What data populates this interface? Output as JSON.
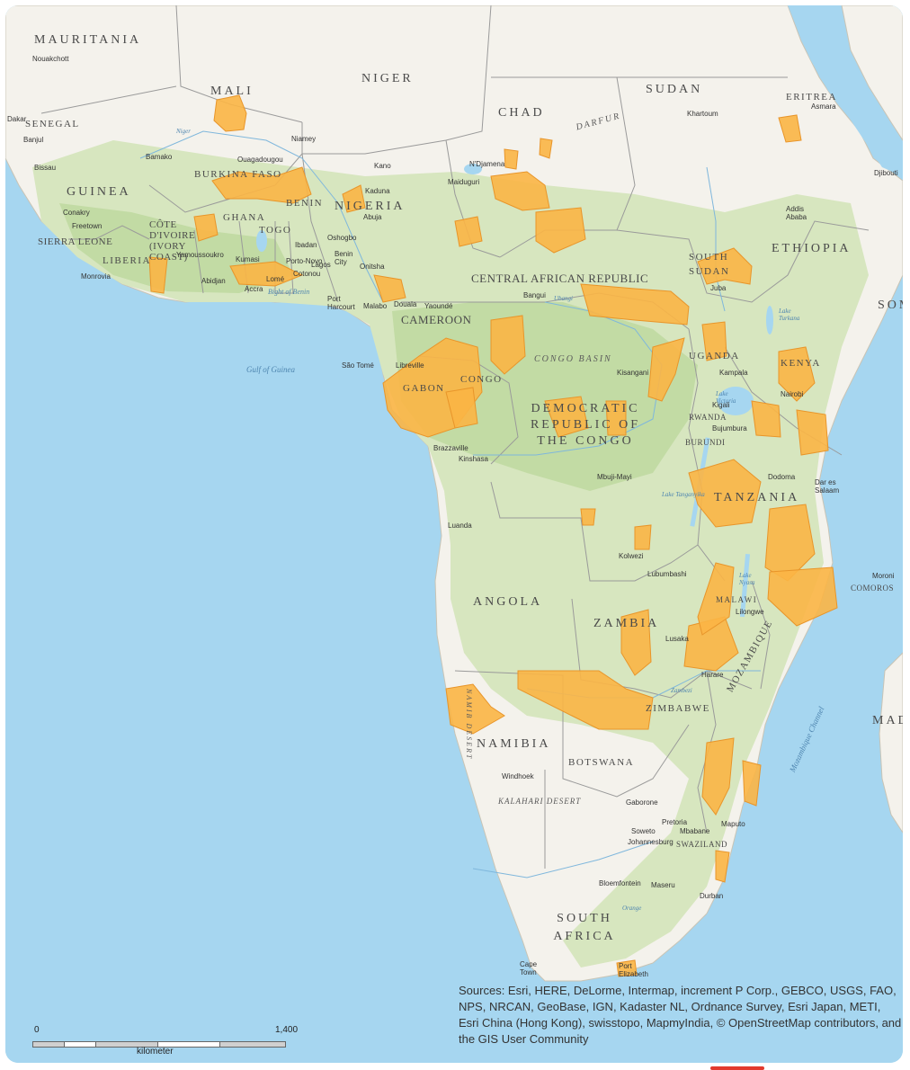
{
  "colors": {
    "ocean": "#a6d6f0",
    "land_dry": "#f4f2ec",
    "land_veg": "#d7e6bf",
    "land_forest": "#c2dba4",
    "border": "#9a9a9a",
    "range_fill": "#fbb545",
    "range_stroke": "#e8952a"
  },
  "countries": [
    {
      "id": "mauritania",
      "text": "MAURITANIA"
    },
    {
      "id": "mali",
      "text": "MALI"
    },
    {
      "id": "niger",
      "text": "NIGER"
    },
    {
      "id": "chad",
      "text": "CHAD"
    },
    {
      "id": "sudan",
      "text": "SUDAN"
    },
    {
      "id": "eritrea",
      "text": "ERITREA"
    },
    {
      "id": "senegal",
      "text": "SENEGAL"
    },
    {
      "id": "guinea",
      "text": "GUINEA"
    },
    {
      "id": "burkina",
      "text": "BURKINA FASO"
    },
    {
      "id": "benin",
      "text": "BENIN"
    },
    {
      "id": "nigeria",
      "text": "NIGERIA"
    },
    {
      "id": "ghana",
      "text": "GHANA"
    },
    {
      "id": "togo",
      "text": "TOGO"
    },
    {
      "id": "cotedivoire",
      "text": "CÔTE D'IVOIRE (IVORY COAST)"
    },
    {
      "id": "sierraleone",
      "text": "SIERRA LEONE"
    },
    {
      "id": "liberia",
      "text": "LIBERIA"
    },
    {
      "id": "southsudan",
      "text": "SOUTH SUDAN"
    },
    {
      "id": "ethiopia",
      "text": "ETHIOPIA"
    },
    {
      "id": "car",
      "text": "CENTRAL AFRICAN REPUBLIC"
    },
    {
      "id": "cameroon",
      "text": "CAMEROON"
    },
    {
      "id": "gabon",
      "text": "GABON"
    },
    {
      "id": "congo",
      "text": "CONGO"
    },
    {
      "id": "drc",
      "text": "DEMOCRATIC REPUBLIC OF THE CONGO"
    },
    {
      "id": "uganda",
      "text": "UGANDA"
    },
    {
      "id": "kenya",
      "text": "KENYA"
    },
    {
      "id": "rwanda",
      "text": "RWANDA"
    },
    {
      "id": "burundi",
      "text": "BURUNDI"
    },
    {
      "id": "tanzania",
      "text": "TANZANIA"
    },
    {
      "id": "angola",
      "text": "ANGOLA"
    },
    {
      "id": "zambia",
      "text": "ZAMBIA"
    },
    {
      "id": "malawi",
      "text": "MALAWI"
    },
    {
      "id": "mozambique",
      "text": "MOZAMBIQUE"
    },
    {
      "id": "zimbabwe",
      "text": "ZIMBABWE"
    },
    {
      "id": "namibia",
      "text": "NAMIBIA"
    },
    {
      "id": "botswana",
      "text": "BOTSWANA"
    },
    {
      "id": "swaziland",
      "text": "SWAZILAND"
    },
    {
      "id": "southafrica",
      "text": "SOUTH AFRICA"
    },
    {
      "id": "comoros",
      "text": "COMOROS"
    },
    {
      "id": "somalia",
      "text": "SOM"
    },
    {
      "id": "madagascar",
      "text": "MAD"
    }
  ],
  "regions": [
    {
      "id": "darfur",
      "text": "DARFUR"
    },
    {
      "id": "congobasin",
      "text": "CONGO BASIN"
    },
    {
      "id": "kalahari",
      "text": "KALAHARI DESERT"
    },
    {
      "id": "namibdesert",
      "text": "NAMIB DESERT"
    }
  ],
  "water": [
    {
      "id": "gulfguinea",
      "text": "Gulf of Guinea"
    },
    {
      "id": "bightbenin",
      "text": "Bight of Benin"
    },
    {
      "id": "mozchannel",
      "text": "Mozambique Channel"
    },
    {
      "id": "lakevictoria",
      "text": "Lake Victoria"
    },
    {
      "id": "laketurkana",
      "text": "Lake Turkana"
    },
    {
      "id": "laketanganyika",
      "text": "Lake Tanganyika"
    },
    {
      "id": "lakenyasa",
      "text": "Lake Nyasa"
    },
    {
      "id": "niger_river",
      "text": "Niger"
    },
    {
      "id": "ubangi",
      "text": "Ubangi"
    },
    {
      "id": "zambezi",
      "text": "Zambezi"
    },
    {
      "id": "orange",
      "text": "Orange"
    }
  ],
  "cities": [
    {
      "id": "nouakchott",
      "text": "Nouakchott"
    },
    {
      "id": "dakar",
      "text": "Dakar"
    },
    {
      "id": "banjul",
      "text": "Banjul"
    },
    {
      "id": "bissau",
      "text": "Bissau"
    },
    {
      "id": "conakry",
      "text": "Conakry"
    },
    {
      "id": "freetown",
      "text": "Freetown"
    },
    {
      "id": "monrovia",
      "text": "Monrovia"
    },
    {
      "id": "bamako",
      "text": "Bamako"
    },
    {
      "id": "ouagadougou",
      "text": "Ouagadougou"
    },
    {
      "id": "niamey",
      "text": "Niamey"
    },
    {
      "id": "kano",
      "text": "Kano"
    },
    {
      "id": "kaduna",
      "text": "Kaduna"
    },
    {
      "id": "abuja",
      "text": "Abuja"
    },
    {
      "id": "ndjamena",
      "text": "N'Djamena"
    },
    {
      "id": "maiduguri",
      "text": "Maiduguri"
    },
    {
      "id": "khartoum",
      "text": "Khartoum"
    },
    {
      "id": "asmara",
      "text": "Asmara"
    },
    {
      "id": "djibouti",
      "text": "Djibouti"
    },
    {
      "id": "addis",
      "text": "Addis Ababa"
    },
    {
      "id": "yamoussoukro",
      "text": "Yamoussoukro"
    },
    {
      "id": "abidjan",
      "text": "Abidjan"
    },
    {
      "id": "kumasi",
      "text": "Kumasi"
    },
    {
      "id": "accra",
      "text": "Accra"
    },
    {
      "id": "lome",
      "text": "Lomé"
    },
    {
      "id": "portonovo",
      "text": "Porto-Novo"
    },
    {
      "id": "cotonou",
      "text": "Cotonou"
    },
    {
      "id": "lagos",
      "text": "Lagos"
    },
    {
      "id": "ibadan",
      "text": "Ibadan"
    },
    {
      "id": "oshogbo",
      "text": "Oshogbo"
    },
    {
      "id": "onitsha",
      "text": "Onitsha"
    },
    {
      "id": "benincity",
      "text": "Benin City"
    },
    {
      "id": "portharcourt",
      "text": "Port Harcourt"
    },
    {
      "id": "malabo",
      "text": "Malabo"
    },
    {
      "id": "douala",
      "text": "Douala"
    },
    {
      "id": "yaounde",
      "text": "Yaoundé"
    },
    {
      "id": "bangui",
      "text": "Bangui"
    },
    {
      "id": "juba",
      "text": "Juba"
    },
    {
      "id": "saotome",
      "text": "São Tomé"
    },
    {
      "id": "libreville",
      "text": "Libreville"
    },
    {
      "id": "kisangani",
      "text": "Kisangani"
    },
    {
      "id": "kampala",
      "text": "Kampala"
    },
    {
      "id": "nairobi",
      "text": "Nairobi"
    },
    {
      "id": "kigali",
      "text": "Kigali"
    },
    {
      "id": "bujumbura",
      "text": "Bujumbura"
    },
    {
      "id": "brazzaville",
      "text": "Brazzaville"
    },
    {
      "id": "kinshasa",
      "text": "Kinshasa"
    },
    {
      "id": "mbujimayi",
      "text": "Mbuji-Mayi"
    },
    {
      "id": "dodoma",
      "text": "Dodoma"
    },
    {
      "id": "daressalaam",
      "text": "Dar es Salaam"
    },
    {
      "id": "luanda",
      "text": "Luanda"
    },
    {
      "id": "kolwezi",
      "text": "Kolwezi"
    },
    {
      "id": "lubumbashi",
      "text": "Lubumbashi"
    },
    {
      "id": "lusaka",
      "text": "Lusaka"
    },
    {
      "id": "lilongwe",
      "text": "Lilongwe"
    },
    {
      "id": "harare",
      "text": "Harare"
    },
    {
      "id": "moroni",
      "text": "Moroni"
    },
    {
      "id": "windhoek",
      "text": "Windhoek"
    },
    {
      "id": "gaborone",
      "text": "Gaborone"
    },
    {
      "id": "pretoria",
      "text": "Pretoria"
    },
    {
      "id": "soweto",
      "text": "Soweto"
    },
    {
      "id": "johannesburg",
      "text": "Johannesburg"
    },
    {
      "id": "mbabane",
      "text": "Mbabane"
    },
    {
      "id": "maputo",
      "text": "Maputo"
    },
    {
      "id": "bloemfontein",
      "text": "Bloemfontein"
    },
    {
      "id": "maseru",
      "text": "Maseru"
    },
    {
      "id": "durban",
      "text": "Durban"
    },
    {
      "id": "capetown",
      "text": "Cape Town"
    },
    {
      "id": "portelizabeth",
      "text": "Port Elizabeth"
    }
  ],
  "scale": {
    "start": "0",
    "end": "1,400",
    "unit": "kilometer"
  },
  "attribution": "Sources: Esri, HERE, DeLorme, Intermap, increment P Corp., GEBCO, USGS, FAO, NPS, NRCAN, GeoBase, IGN, Kadaster NL, Ordnance Survey, Esri Japan, METI, Esri China (Hong Kong), swisstopo, MapmyIndia, © OpenStreetMap contributors, and the GIS User Community"
}
